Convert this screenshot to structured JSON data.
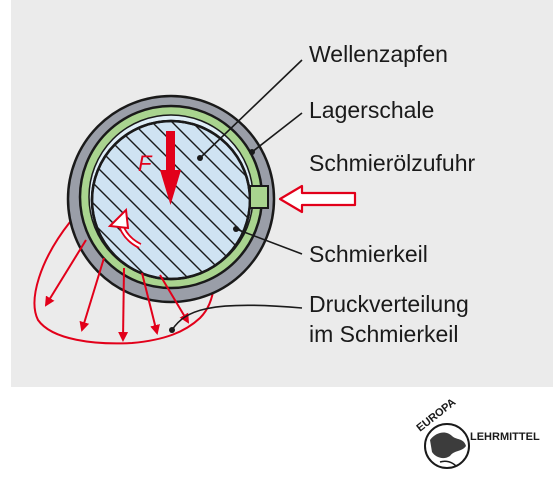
{
  "labels": {
    "wellenzapfen": "Wellenzapfen",
    "lagerschale": "Lagerschale",
    "schmieroelzufuhr": "Schmierölzufuhr",
    "schmierkeil": "Schmierkeil",
    "druck_line1": "Druckverteilung",
    "druck_line2": "im Schmierkeil",
    "force": "F"
  },
  "logo": {
    "top": "EUROPA",
    "side": "LEHRMITTEL"
  },
  "colors": {
    "background": "#ebebeb",
    "housing": "#9a9ea8",
    "bearing_shell": "#a9d48f",
    "journal": "#cfe3f2",
    "accent_red": "#e2001a",
    "outline": "#1a1a1a"
  }
}
